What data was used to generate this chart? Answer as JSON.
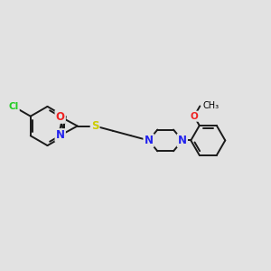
{
  "bg_color": "#e2e2e2",
  "bond_color": "#1a1a1a",
  "bond_lw": 1.4,
  "dbo": 0.055,
  "colors": {
    "Cl": "#22cc22",
    "N": "#2222ee",
    "O": "#ee2222",
    "S": "#cccc00"
  },
  "figsize": [
    3.0,
    3.0
  ],
  "dpi": 100,
  "bl": 0.72
}
